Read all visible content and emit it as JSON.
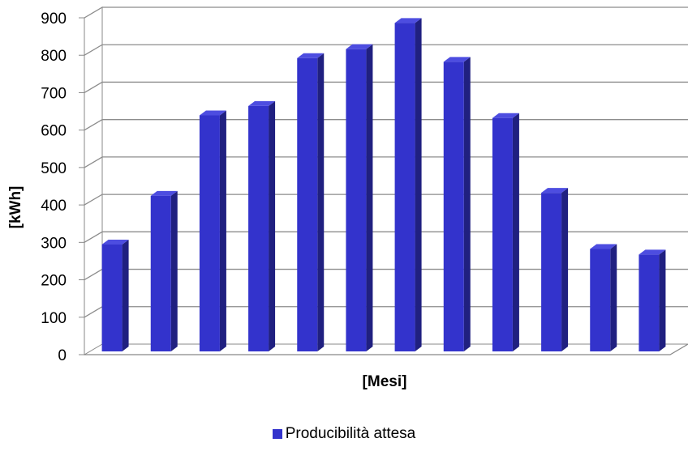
{
  "chart_data": {
    "type": "bar",
    "categories": [
      "",
      "",
      "",
      "",
      "",
      "",
      "",
      "",
      "",
      "",
      "",
      ""
    ],
    "series": [
      {
        "name": "Producibilità attesa",
        "values": [
          290,
          420,
          635,
          660,
          788,
          812,
          882,
          778,
          628,
          428,
          278,
          263
        ],
        "color": "#3333cc"
      }
    ],
    "xlabel": "[Mesi]",
    "ylabel": "[kWh]",
    "ylim": [
      0,
      900
    ],
    "yticks": [
      0,
      100,
      200,
      300,
      400,
      500,
      600,
      700,
      800,
      900
    ],
    "grid": true,
    "legend": "bottom",
    "style": "3d-bar"
  }
}
